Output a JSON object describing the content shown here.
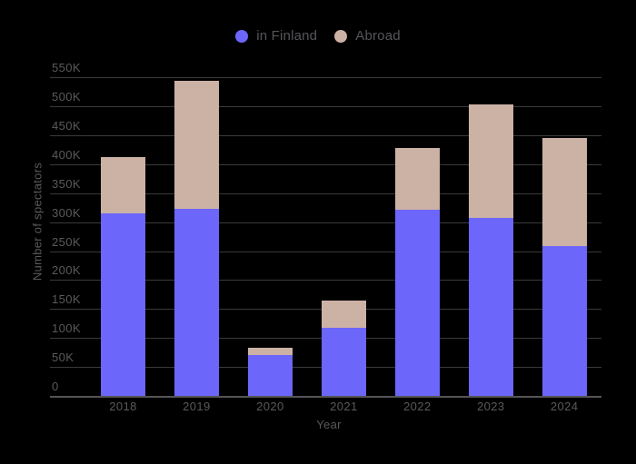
{
  "legend": {
    "items": [
      {
        "label": "in Finland",
        "color": "#6c66fb"
      },
      {
        "label": "Abroad",
        "color": "#ccb1a5"
      }
    ]
  },
  "chart_data": {
    "type": "bar",
    "stacked": true,
    "title": "",
    "categories": [
      "2018",
      "2019",
      "2020",
      "2021",
      "2022",
      "2023",
      "2024"
    ],
    "series": [
      {
        "name": "in Finland",
        "color": "#6c66fb",
        "values": [
          316,
          323,
          70,
          118,
          322,
          308,
          258
        ]
      },
      {
        "name": "Abroad",
        "color": "#ccb1a5",
        "values": [
          96,
          221,
          13,
          47,
          106,
          195,
          188
        ]
      }
    ],
    "totals": [
      412,
      544,
      83,
      165,
      428,
      503,
      446
    ],
    "values_unit": "thousands of spectators (K)",
    "xlabel": "Year",
    "ylabel": "Number of spectators",
    "ylim": [
      0,
      550
    ],
    "ytick_step": 50,
    "yticks": [
      "0",
      "50K",
      "100K",
      "150K",
      "200K",
      "250K",
      "300K",
      "350K",
      "400K",
      "450K",
      "500K",
      "550K"
    ],
    "grid": "horizontal",
    "legend_position": "top-center",
    "background_color": "#000000",
    "text_color": "#5a5a5a"
  }
}
